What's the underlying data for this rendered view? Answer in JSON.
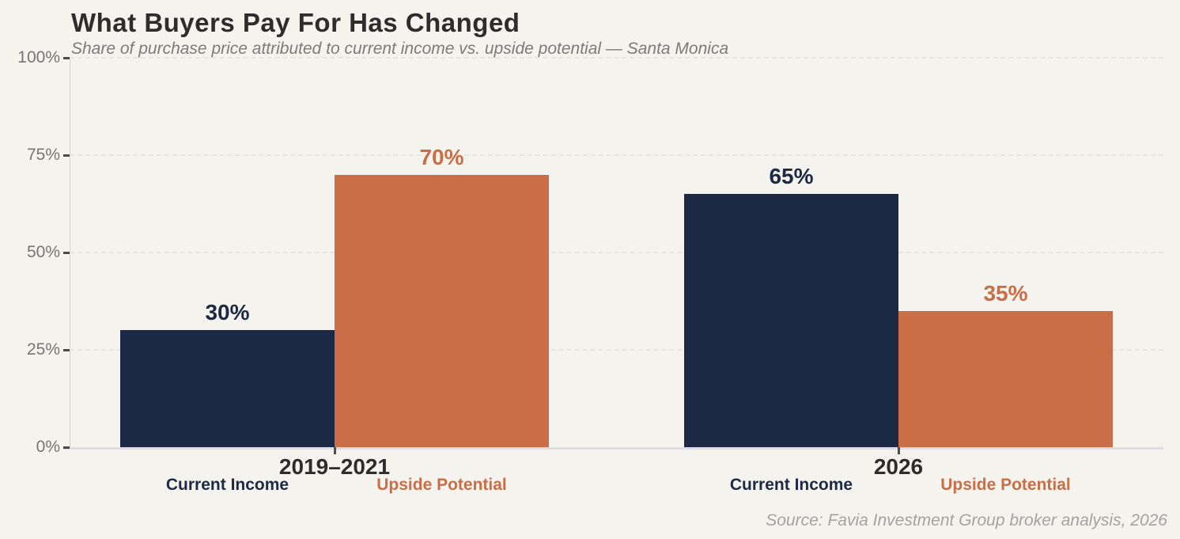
{
  "header": {
    "title": "What Buyers Pay For Has Changed",
    "subtitle": "Share of purchase price attributed to current income vs. upside potential — Santa Monica"
  },
  "footer": {
    "source": "Source: Favia Investment Group broker analysis, 2026"
  },
  "colors": {
    "background": "#f5f3ee",
    "navy": "#1c2a45",
    "orange": "#c96e46",
    "title_text": "#2d2d2d",
    "muted_text": "#7b7b7b",
    "tick_text": "#757575",
    "source_text": "#a3a3a3"
  },
  "chart_data": {
    "type": "bar",
    "title": "What Buyers Pay For Has Changed",
    "subtitle": "Share of purchase price attributed to current income vs. upside potential — Santa Monica",
    "categories": [
      "2019–2021",
      "2026"
    ],
    "series": [
      {
        "name": "Current Income",
        "color": "#1c2a45",
        "values": [
          30,
          65
        ]
      },
      {
        "name": "Upside Potential",
        "color": "#c96e46",
        "values": [
          70,
          35
        ]
      }
    ],
    "value_label_suffix": "%",
    "y_ticks": [
      0,
      25,
      50,
      75,
      100
    ],
    "y_tick_labels": [
      "0%",
      "25%",
      "50%",
      "75%",
      "100%"
    ],
    "ylim": [
      0,
      100
    ],
    "xlabel": "",
    "ylabel": "",
    "grid": "horizontal-dashed",
    "legend": "none (series named under each bar)",
    "source": "Source: Favia Investment Group broker analysis, 2026"
  }
}
